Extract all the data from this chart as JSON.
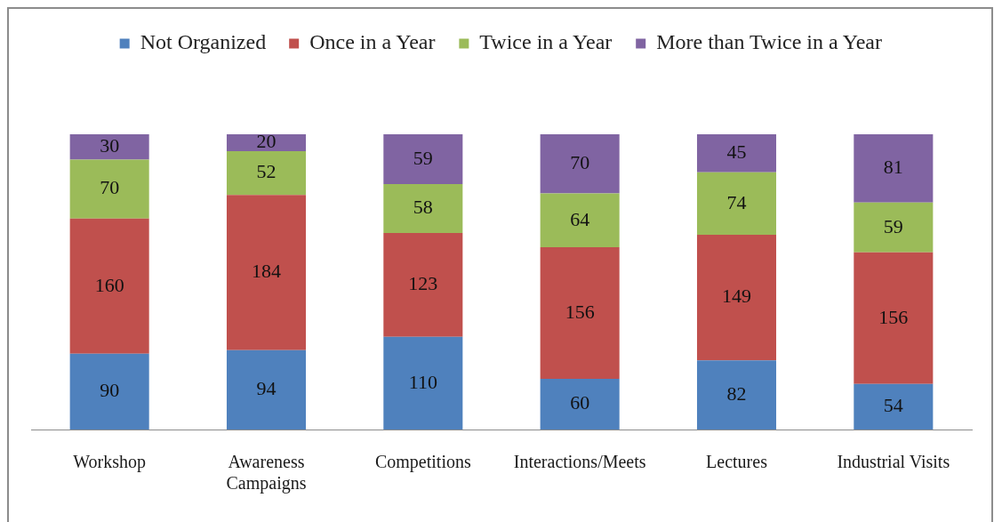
{
  "chart_data": {
    "type": "bar",
    "stacked": true,
    "categories": [
      "Workshop",
      "Awareness Campaigns",
      "Competitions",
      "Interactions/Meets",
      "Lectures",
      "Industrial Visits"
    ],
    "series": [
      {
        "name": "Not Organized",
        "color": "#4f81bd",
        "values": [
          90,
          94,
          110,
          60,
          82,
          54
        ]
      },
      {
        "name": "Once in a Year",
        "color": "#c0504d",
        "values": [
          160,
          184,
          123,
          156,
          149,
          156
        ]
      },
      {
        "name": "Twice in a Year",
        "color": "#9bbb59",
        "values": [
          70,
          52,
          58,
          64,
          74,
          59
        ]
      },
      {
        "name": "More than Twice in a Year",
        "color": "#8064a2",
        "values": [
          30,
          20,
          59,
          70,
          45,
          81
        ]
      }
    ],
    "data_labels": true,
    "legend": "top",
    "grid": false,
    "tick_labels": "x"
  }
}
